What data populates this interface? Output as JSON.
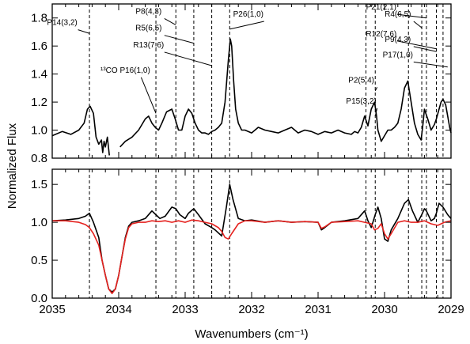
{
  "chart_data": [
    {
      "type": "line",
      "panel": "top",
      "xlabel": "Wavenumbers (cm⁻¹)",
      "ylabel": "Normalized Flux",
      "xlim": [
        2035,
        2029
      ],
      "ylim": [
        0.8,
        1.9
      ],
      "yticks": [
        0.8,
        1.0,
        1.2,
        1.4,
        1.6,
        1.8
      ],
      "ytick_labels": [
        "0.8",
        "1.0",
        "1.2",
        "1.4",
        "1.6",
        "1.8"
      ],
      "series": [
        {
          "color": "#000000",
          "x": [
            2035.0,
            2034.85,
            2034.72,
            2034.6,
            2034.52,
            2034.47,
            2034.43,
            2034.38,
            2034.34,
            2034.3,
            2034.26,
            2034.24,
            2034.22,
            2034.2,
            2034.17,
            2034.14,
            null,
            2033.98,
            2033.9,
            2033.8,
            2033.7,
            2033.6,
            2033.55,
            2033.5,
            2033.45,
            2033.4,
            2033.35,
            2033.28,
            2033.2,
            2033.15,
            2033.1,
            2033.05,
            2033.0,
            2032.95,
            2032.9,
            2032.85,
            2032.8,
            2032.75,
            2032.7,
            2032.65,
            2032.6,
            2032.55,
            2032.5,
            2032.45,
            2032.4,
            2032.35,
            2032.32,
            2032.3,
            2032.27,
            2032.24,
            2032.2,
            2032.15,
            2032.1,
            2032.0,
            2031.9,
            2031.8,
            2031.7,
            2031.6,
            2031.5,
            2031.4,
            2031.3,
            2031.2,
            2031.1,
            2031.0,
            2030.9,
            2030.8,
            2030.7,
            2030.6,
            2030.5,
            2030.45,
            2030.4,
            2030.35,
            2030.3,
            2030.25,
            2030.2,
            2030.15,
            2030.12,
            2030.1,
            2030.05,
            2030.0,
            2029.95,
            2029.9,
            2029.85,
            2029.8,
            2029.75,
            2029.7,
            2029.65,
            2029.6,
            2029.55,
            2029.5,
            2029.45,
            2029.42,
            2029.4,
            2029.38,
            2029.35,
            2029.3,
            2029.25,
            2029.22,
            2029.18,
            2029.15,
            2029.12,
            2029.08,
            2029.05,
            2029.02,
            2029.0
          ],
          "y": [
            0.96,
            0.99,
            0.97,
            1.0,
            1.05,
            1.15,
            1.17,
            1.12,
            0.95,
            0.9,
            0.93,
            0.84,
            0.92,
            0.88,
            0.95,
            0.82,
            null,
            0.88,
            0.92,
            0.95,
            1.0,
            1.08,
            1.1,
            1.05,
            1.02,
            1.0,
            1.05,
            1.13,
            1.15,
            1.08,
            1.0,
            1.0,
            1.1,
            1.15,
            1.12,
            1.05,
            1.0,
            0.98,
            0.98,
            0.97,
            0.99,
            1.0,
            1.02,
            1.05,
            1.2,
            1.5,
            1.65,
            1.6,
            1.35,
            1.15,
            1.05,
            1.0,
            1.0,
            0.98,
            1.02,
            1.0,
            0.99,
            0.98,
            1.0,
            1.02,
            0.98,
            1.0,
            0.99,
            0.97,
            0.99,
            0.98,
            1.0,
            0.98,
            0.97,
            0.99,
            0.98,
            1.02,
            1.1,
            1.03,
            1.15,
            1.2,
            1.1,
            1.0,
            0.92,
            0.96,
            1.0,
            1.0,
            1.02,
            1.05,
            1.15,
            1.3,
            1.35,
            1.2,
            1.05,
            0.97,
            0.93,
            1.05,
            1.15,
            1.12,
            1.08,
            1.0,
            1.04,
            1.08,
            1.15,
            1.2,
            1.22,
            1.18,
            1.1,
            1.02,
            0.98
          ]
        }
      ],
      "vlines": [
        2034.44,
        2033.44,
        2033.14,
        2032.87,
        2032.6,
        2032.33,
        2030.28,
        2030.14,
        2029.64,
        2029.44,
        2029.37,
        2029.22,
        2029.12
      ],
      "annotations": [
        {
          "label": "P14(3,2)",
          "target_x": 2034.44,
          "target_y": 1.69,
          "text_x": 2034.85,
          "text_y": 1.75
        },
        {
          "label": "P8(4,3)",
          "target_x": 2033.14,
          "target_y": 1.75,
          "text_x": 2033.55,
          "text_y": 1.83
        },
        {
          "label": "R5(6,5)",
          "target_x": 2032.87,
          "target_y": 1.62,
          "text_x": 2033.55,
          "text_y": 1.71
        },
        {
          "label": "R13(7,6)",
          "target_x": 2032.6,
          "target_y": 1.46,
          "text_x": 2033.55,
          "text_y": 1.59
        },
        {
          "label": "P26(1,0)",
          "target_x": 2032.33,
          "target_y": 1.72,
          "text_x": 2032.05,
          "text_y": 1.81
        },
        {
          "label": "¹³CO P16(1,0)",
          "target_x": 2033.44,
          "target_y": 1.12,
          "text_x": 2033.9,
          "text_y": 1.41
        },
        {
          "label": "P21(2,1)",
          "target_x": 2029.37,
          "target_y": 1.8,
          "text_x": 2030.05,
          "text_y": 1.86
        },
        {
          "label": "R4(6,5)",
          "target_x": 2029.44,
          "target_y": 1.73,
          "text_x": 2029.8,
          "text_y": 1.81
        },
        {
          "label": "R12(7,6)",
          "target_x": 2029.22,
          "target_y": 1.58,
          "text_x": 2030.05,
          "text_y": 1.67
        },
        {
          "label": "P9(4,3)",
          "target_x": 2029.22,
          "target_y": 1.56,
          "text_x": 2029.8,
          "text_y": 1.63
        },
        {
          "label": "P17(1,0)",
          "target_x": 2029.05,
          "target_y": 1.45,
          "text_x": 2029.8,
          "text_y": 1.52
        },
        {
          "label": "P2(5,4)",
          "target_x": 2030.14,
          "target_y": 1.28,
          "text_x": 2030.35,
          "text_y": 1.34
        },
        {
          "label": "P15(3,2)",
          "target_x": 2030.14,
          "target_y": 1.1,
          "text_x": 2030.35,
          "text_y": 1.19
        }
      ]
    },
    {
      "type": "line",
      "panel": "bottom",
      "xlabel": "Wavenumbers (cm⁻¹)",
      "ylabel": "Normalized Flux",
      "xlim": [
        2035,
        2029
      ],
      "ylim": [
        0.0,
        1.7
      ],
      "yticks": [
        0.0,
        0.5,
        1.0,
        1.5
      ],
      "ytick_labels": [
        "0.0",
        "0.5",
        "1.0",
        "1.5"
      ],
      "xticks": [
        2035,
        2034,
        2033,
        2032,
        2031,
        2030,
        2029
      ],
      "xtick_labels": [
        "2035",
        "2034",
        "2033",
        "2032",
        "2031",
        "2030",
        "2029"
      ],
      "series": [
        {
          "color": "#000000",
          "x": [
            2035.0,
            2034.8,
            2034.6,
            2034.5,
            2034.44,
            2034.38,
            2034.3,
            2034.25,
            2034.2,
            2034.15,
            2034.1,
            2034.05,
            2034.0,
            2033.95,
            2033.9,
            2033.85,
            2033.8,
            2033.7,
            2033.6,
            2033.5,
            2033.44,
            2033.38,
            2033.3,
            2033.2,
            2033.14,
            2033.08,
            2033.0,
            2032.95,
            2032.87,
            2032.8,
            2032.7,
            2032.6,
            2032.55,
            2032.45,
            2032.38,
            2032.33,
            2032.28,
            2032.2,
            2032.1,
            2032.0,
            2031.8,
            2031.6,
            2031.4,
            2031.2,
            2031.0,
            2030.95,
            2030.9,
            2030.8,
            2030.6,
            2030.4,
            2030.3,
            2030.28,
            2030.25,
            2030.2,
            2030.14,
            2030.1,
            2030.05,
            2030.0,
            2029.95,
            2029.9,
            2029.8,
            2029.7,
            2029.64,
            2029.58,
            2029.5,
            2029.44,
            2029.4,
            2029.37,
            2029.3,
            2029.25,
            2029.22,
            2029.18,
            2029.12,
            2029.05,
            2029.0
          ],
          "y": [
            1.02,
            1.03,
            1.05,
            1.08,
            1.12,
            1.0,
            0.8,
            0.5,
            0.3,
            0.12,
            0.08,
            0.12,
            0.3,
            0.55,
            0.8,
            0.95,
            1.0,
            1.02,
            1.05,
            1.15,
            1.1,
            1.05,
            1.08,
            1.2,
            1.18,
            1.1,
            1.05,
            1.12,
            1.18,
            1.1,
            0.98,
            0.93,
            0.9,
            0.82,
            1.2,
            1.5,
            1.3,
            1.05,
            1.02,
            1.03,
            1.0,
            1.02,
            1.0,
            1.01,
            1.0,
            0.9,
            0.93,
            1.0,
            1.02,
            1.05,
            1.15,
            1.1,
            1.02,
            0.93,
            1.1,
            1.2,
            1.05,
            0.78,
            0.75,
            0.9,
            1.05,
            1.25,
            1.3,
            1.15,
            1.0,
            1.1,
            1.18,
            1.15,
            1.02,
            1.05,
            1.12,
            1.25,
            1.2,
            1.1,
            1.05
          ]
        },
        {
          "color": "#e5221f",
          "x": [
            2035.0,
            2034.8,
            2034.6,
            2034.5,
            2034.44,
            2034.38,
            2034.3,
            2034.25,
            2034.2,
            2034.15,
            2034.1,
            2034.05,
            2034.0,
            2033.95,
            2033.9,
            2033.85,
            2033.8,
            2033.7,
            2033.6,
            2033.5,
            2033.4,
            2033.3,
            2033.2,
            2033.1,
            2033.0,
            2032.9,
            2032.8,
            2032.7,
            2032.6,
            2032.5,
            2032.45,
            2032.4,
            2032.35,
            2032.3,
            2032.2,
            2032.1,
            2032.0,
            2031.8,
            2031.6,
            2031.4,
            2031.2,
            2031.0,
            2030.95,
            2030.9,
            2030.8,
            2030.6,
            2030.4,
            2030.3,
            2030.2,
            2030.15,
            2030.1,
            2030.05,
            2030.0,
            2029.95,
            2029.9,
            2029.8,
            2029.7,
            2029.6,
            2029.5,
            2029.4,
            2029.3,
            2029.2,
            2029.1,
            2029.0
          ],
          "y": [
            1.02,
            1.02,
            1.0,
            0.97,
            0.93,
            0.85,
            0.7,
            0.5,
            0.3,
            0.12,
            0.06,
            0.12,
            0.3,
            0.55,
            0.78,
            0.93,
            0.98,
            1.0,
            1.0,
            1.02,
            1.01,
            1.02,
            1.0,
            1.02,
            1.0,
            1.03,
            1.02,
            1.0,
            0.98,
            0.93,
            0.88,
            0.8,
            0.78,
            0.85,
            0.98,
            1.02,
            1.02,
            1.0,
            1.02,
            1.0,
            1.01,
            1.0,
            0.92,
            0.94,
            1.0,
            1.01,
            1.02,
            1.0,
            0.98,
            0.9,
            0.92,
            0.98,
            0.85,
            0.78,
            0.85,
            1.0,
            1.02,
            1.0,
            1.0,
            1.02,
            0.98,
            0.96,
            1.0,
            1.02
          ]
        }
      ],
      "vlines": [
        2034.44,
        2033.44,
        2033.14,
        2032.87,
        2032.6,
        2032.33,
        2030.28,
        2030.14,
        2029.64,
        2029.44,
        2029.37,
        2029.22,
        2029.12
      ]
    }
  ]
}
